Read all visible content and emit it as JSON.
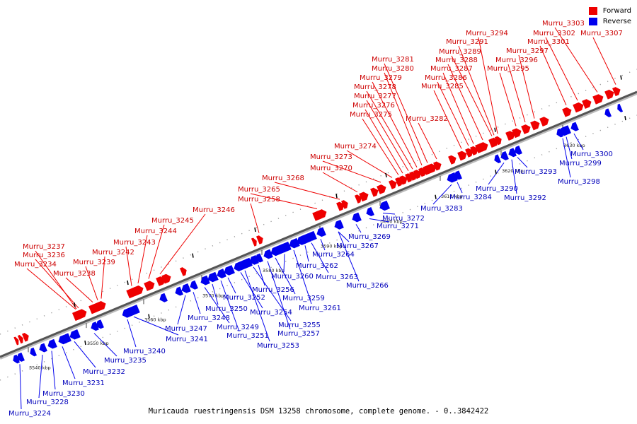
{
  "legend": {
    "forward_label": "Forward",
    "reverse_label": "Reverse",
    "forward_color": "#ee0000",
    "reverse_color": "#0000ee"
  },
  "caption": "Muricauda ruestringensis DSM 13258 chromosome, complete genome. - 0..3842422",
  "scale_ticks": [
    "3540 kbp",
    "3550 kbp",
    "3560 kbp",
    "3570 kbp",
    "3580 kbp",
    "3590 kbp",
    "3600 kbp",
    "3610 kbp",
    "3620 kbp",
    "3630 kbp"
  ],
  "forward_genes": [
    "Murru_3237",
    "Murru_3236",
    "Murru_3234",
    "Murru_3239",
    "Murru_3238",
    "Murru_3242",
    "Murru_3243",
    "Murru_3244",
    "Murru_3245",
    "Murru_3246",
    "Murru_3258",
    "Murru_3265",
    "Murru_3268",
    "Murru_3270",
    "Murru_3273",
    "Murru_3274",
    "Murru_3275",
    "Murru_3276",
    "Murru_3277",
    "Murru_3278",
    "Murru_3279",
    "Murru_3280",
    "Murru_3281",
    "Murru_3282",
    "Murru_3285",
    "Murru_3286",
    "Murru_3287",
    "Murru_3288",
    "Murru_3289",
    "Murru_3291",
    "Murru_3294",
    "Murru_3295",
    "Murru_3296",
    "Murru_3297",
    "Murru_3301",
    "Murru_3302",
    "Murru_3303",
    "Murru_3307"
  ],
  "reverse_genes": [
    "Murru_3224",
    "Murru_3228",
    "Murru_3230",
    "Murru_3231",
    "Murru_3232",
    "Murru_3235",
    "Murru_3240",
    "Murru_3241",
    "Murru_3247",
    "Murru_3248",
    "Murru_3249",
    "Murru_3250",
    "Murru_3251",
    "Murru_3252",
    "Murru_3253",
    "Murru_3254",
    "Murru_3255",
    "Murru_3256",
    "Murru_3257",
    "Murru_3259",
    "Murru_3260",
    "Murru_3261",
    "Murru_3262",
    "Murru_3263",
    "Murru_3264",
    "Murru_3266",
    "Murru_3267",
    "Murru_3269",
    "Murru_3271",
    "Murru_3272",
    "Murru_3283",
    "Murru_3284",
    "Murru_3290",
    "Murru_3292",
    "Murru_3293",
    "Murru_3298",
    "Murru_3299",
    "Murru_3300"
  ]
}
